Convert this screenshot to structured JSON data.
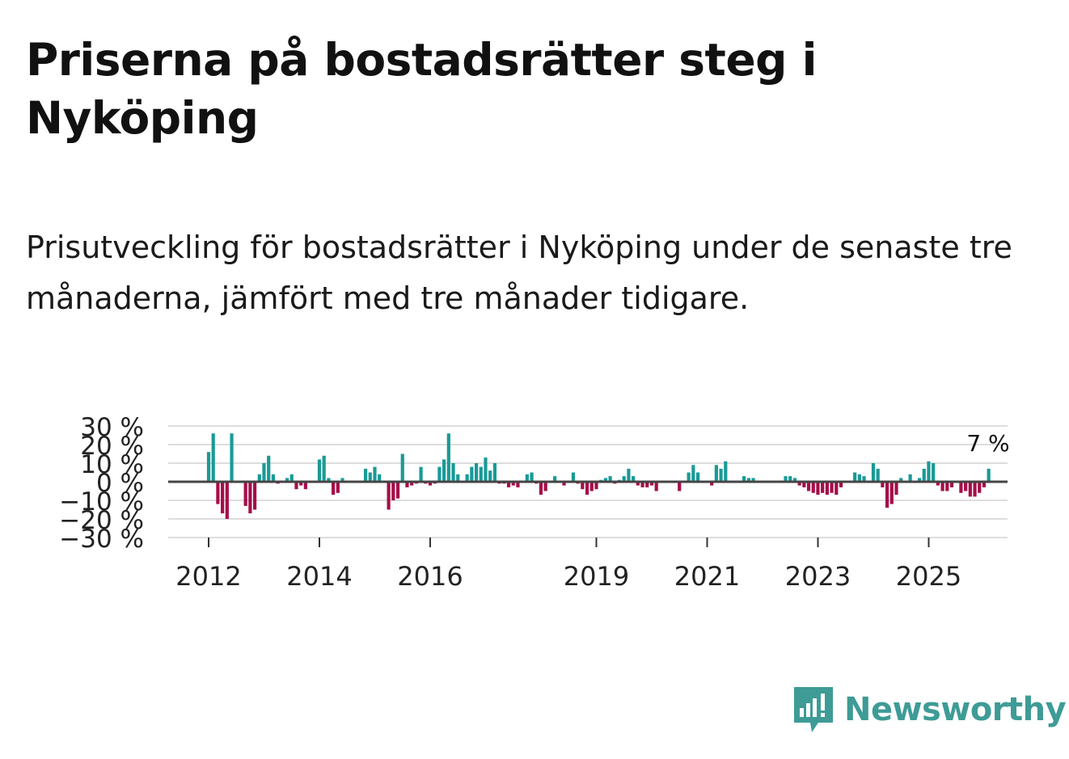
{
  "header": {
    "title": "Priserna på bostadsrätter steg i Nyköping",
    "subtitle": "Prisutveckling för bostadsrätter i Nyköping under de senaste tre månaderna, jämfört med tre månader tidigare."
  },
  "brand": {
    "name": "Newsworthy",
    "icon": "newsworthy-logo-icon",
    "color": "#3e9b96"
  },
  "colors": {
    "positive": "#1a9a97",
    "negative": "#a50e49",
    "zero_line": "#444444",
    "grid": "#dddddd"
  },
  "chart_data": {
    "type": "bar",
    "title": "Prisutveckling för bostadsrätter i Nyköping",
    "xlabel": "",
    "ylabel": "",
    "ylim": [
      -30,
      30
    ],
    "y_ticks": [
      30,
      20,
      10,
      0,
      -10,
      -20,
      -30
    ],
    "y_tick_labels": [
      "30 %",
      "20 %",
      "10 %",
      "0 %",
      "−10 %",
      "−20 %",
      "−30 %"
    ],
    "x_ticks": [
      2012,
      2014,
      2016,
      2019,
      2021,
      2023,
      2025
    ],
    "x_tick_labels": [
      "2012",
      "2014",
      "2016",
      "2019",
      "2021",
      "2023",
      "2025"
    ],
    "x_start": 2012.0,
    "step": 0.08333,
    "grid": true,
    "annotation": {
      "label": "7 %",
      "value": 7
    },
    "values": [
      16,
      26,
      -12,
      -17,
      -20,
      26,
      0,
      0,
      -13,
      -17,
      -15,
      4,
      10,
      14,
      4,
      -1,
      0,
      2,
      4,
      -4,
      -2,
      -4,
      0,
      0,
      12,
      14,
      2,
      -7,
      -6,
      2,
      0,
      0,
      0,
      0,
      7,
      5,
      8,
      4,
      0,
      -15,
      -10,
      -9,
      15,
      -3,
      -2,
      -1,
      8,
      -1,
      -2,
      -1,
      8,
      12,
      26,
      10,
      4,
      0,
      4,
      8,
      10,
      8,
      13,
      6,
      10,
      -1,
      -1,
      -3,
      -2,
      -3,
      0,
      4,
      5,
      -1,
      -7,
      -5,
      0,
      3,
      0,
      -2,
      0,
      5,
      -1,
      -4,
      -7,
      -5,
      -4,
      1,
      2,
      3,
      -1,
      1,
      3,
      7,
      3,
      -2,
      -3,
      -3,
      -2,
      -5,
      0,
      0,
      0,
      0,
      -5,
      0,
      5,
      9,
      5,
      0,
      0,
      -2,
      9,
      7,
      11,
      0,
      0,
      0,
      3,
      2,
      2,
      0,
      0,
      0,
      0,
      0,
      0,
      3,
      3,
      2,
      -2,
      -3,
      -5,
      -6,
      -7,
      -6,
      -7,
      -6,
      -7,
      -3,
      0,
      0,
      5,
      4,
      3,
      0,
      10,
      7,
      -3,
      -14,
      -12,
      -7,
      2,
      0,
      4,
      0,
      2,
      7,
      11,
      10,
      -2,
      -5,
      -5,
      -3,
      0,
      -6,
      -5,
      -8,
      -8,
      -6,
      -3,
      7
    ]
  }
}
